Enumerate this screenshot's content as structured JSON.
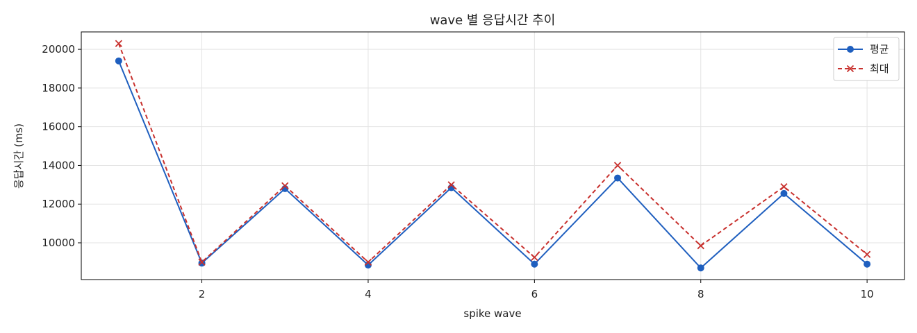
{
  "chart_data": {
    "type": "line",
    "title": "wave 별 응답시간 추이",
    "xlabel": "spike wave",
    "ylabel": "응답시간 (ms)",
    "x": [
      1,
      2,
      3,
      4,
      5,
      6,
      7,
      8,
      9,
      10
    ],
    "xlim": [
      0.55,
      10.45
    ],
    "ylim": [
      8100,
      20900
    ],
    "x_ticks": [
      2,
      4,
      6,
      8,
      10
    ],
    "y_ticks": [
      10000,
      12000,
      14000,
      16000,
      18000,
      20000
    ],
    "grid": true,
    "legend_position": "top-right",
    "series": [
      {
        "name": "평균",
        "color": "#1f5fbf",
        "marker": "circle",
        "line_style": "solid",
        "values": [
          19400,
          8950,
          12800,
          8850,
          12850,
          8900,
          13350,
          8700,
          12550,
          8900
        ]
      },
      {
        "name": "최대",
        "color": "#c8302d",
        "marker": "x",
        "line_style": "dashed",
        "values": [
          20300,
          9000,
          12950,
          9000,
          13000,
          9250,
          14000,
          9850,
          12900,
          9400
        ]
      }
    ]
  }
}
